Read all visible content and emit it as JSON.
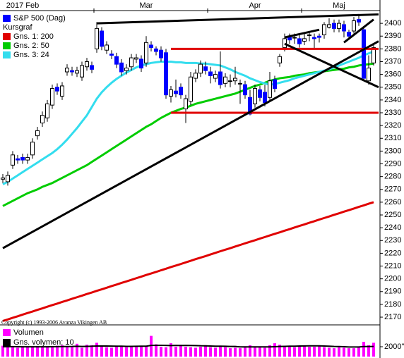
{
  "chart_data": [
    {
      "type": "candlestick",
      "name": "S&P 500 (Dag)",
      "label": "Kursgraf",
      "color": "#0000ff",
      "up_color": "#ffffff",
      "copyright": "Copyright (c) 1993-2006 Avanza Vikingen AB",
      "categories": [
        null,
        null,
        null,
        null,
        "2017 Feb",
        null,
        null,
        null,
        null,
        null,
        null,
        null,
        null,
        null,
        null,
        null,
        null,
        null,
        null,
        null,
        null,
        null,
        null,
        null,
        null,
        null,
        null,
        null,
        null,
        "Mar",
        null,
        null,
        null,
        null,
        null,
        null,
        null,
        null,
        null,
        null,
        null,
        null,
        null,
        null,
        null,
        null,
        null,
        null,
        null,
        null,
        null,
        "Apr",
        null,
        null,
        null,
        null,
        null,
        null,
        null,
        null,
        null,
        null,
        null,
        null,
        null,
        null,
        null,
        null,
        "Maj",
        null,
        null,
        null,
        null,
        null,
        null,
        null
      ],
      "open": [
        2278,
        2276,
        2289,
        2294,
        2295,
        2293,
        2297,
        2312,
        2322,
        2326,
        2336,
        2350,
        2343,
        2362,
        2363,
        2361,
        2358,
        2366,
        2367,
        2380,
        2394,
        2379,
        2376,
        2374,
        2369,
        2363,
        2366,
        2372,
        2372,
        2369,
        2383,
        2380,
        2379,
        2377,
        2343,
        2347,
        2350,
        2333,
        2339,
        2357,
        2361,
        2366,
        2362,
        2357,
        2362,
        2353,
        2355,
        2355,
        2353,
        2352,
        2342,
        2337,
        2348,
        2346,
        2342,
        2356,
        2369,
        2381,
        2389,
        2389,
        2388,
        2386,
        2391,
        2389,
        2390,
        2391,
        2397,
        2400,
        2396,
        2399,
        2393,
        2394,
        2403,
        2395,
        2355,
        2369
      ],
      "high": [
        2282,
        2284,
        2300,
        2297,
        2298,
        2298,
        2310,
        2319,
        2331,
        2340,
        2352,
        2353,
        2354,
        2368,
        2366,
        2366,
        2370,
        2373,
        2370,
        2401,
        2397,
        2386,
        2379,
        2377,
        2372,
        2368,
        2376,
        2376,
        2375,
        2390,
        2386,
        2382,
        2382,
        2380,
        2351,
        2356,
        2353,
        2344,
        2362,
        2364,
        2371,
        2370,
        2366,
        2363,
        2378,
        2361,
        2360,
        2366,
        2356,
        2355,
        2348,
        2352,
        2351,
        2352,
        2362,
        2359,
        2376,
        2392,
        2392,
        2392,
        2392,
        2392,
        2394,
        2392,
        2392,
        2401,
        2404,
        2403,
        2403,
        2402,
        2395,
        2405,
        2406,
        2396,
        2375,
        2384
      ],
      "low": [
        2275,
        2273,
        2286,
        2290,
        2290,
        2290,
        2294,
        2309,
        2319,
        2323,
        2333,
        2344,
        2340,
        2359,
        2359,
        2358,
        2355,
        2363,
        2361,
        2377,
        2379,
        2376,
        2372,
        2365,
        2359,
        2360,
        2363,
        2369,
        2362,
        2366,
        2378,
        2375,
        2370,
        2341,
        2338,
        2342,
        2341,
        2322,
        2336,
        2354,
        2358,
        2360,
        2353,
        2354,
        2349,
        2350,
        2350,
        2352,
        2337,
        2341,
        2328,
        2334,
        2339,
        2335,
        2340,
        2346,
        2366,
        2378,
        2384,
        2384,
        2381,
        2383,
        2386,
        2380,
        2385,
        2388,
        2396,
        2393,
        2393,
        2389,
        2387,
        2392,
        2398,
        2356,
        2352,
        2367
      ],
      "close": [
        2279,
        2281,
        2297,
        2293,
        2293,
        2295,
        2307,
        2316,
        2328,
        2337,
        2349,
        2347,
        2351,
        2365,
        2362,
        2363,
        2367,
        2370,
        2364,
        2396,
        2382,
        2383,
        2375,
        2368,
        2362,
        2365,
        2373,
        2373,
        2365,
        2385,
        2381,
        2378,
        2373,
        2344,
        2348,
        2345,
        2344,
        2341,
        2358,
        2361,
        2368,
        2363,
        2359,
        2360,
        2352,
        2358,
        2355,
        2357,
        2353,
        2344,
        2329,
        2349,
        2342,
        2338,
        2355,
        2349,
        2374,
        2388,
        2387,
        2389,
        2384,
        2388,
        2391,
        2388,
        2389,
        2399,
        2399,
        2396,
        2400,
        2394,
        2390,
        2402,
        2401,
        2357,
        2365,
        2381
      ],
      "series": [
        {
          "name": "Gns. 1: 200",
          "color": "#e00000",
          "values": [
            2167,
            2168.2,
            2169.5,
            2170.7,
            2172.0,
            2173.2,
            2174.4,
            2175.7,
            2176.9,
            2178.2,
            2179.4,
            2180.6,
            2181.9,
            2183.1,
            2184.4,
            2185.6,
            2186.8,
            2188.1,
            2189.3,
            2190.6,
            2191.8,
            2193.0,
            2194.3,
            2195.5,
            2196.8,
            2198.0,
            2199.2,
            2200.5,
            2201.7,
            2203.0,
            2204.2,
            2205.4,
            2206.7,
            2207.9,
            2209.2,
            2210.4,
            2211.6,
            2212.9,
            2214.1,
            2215.4,
            2216.6,
            2217.8,
            2219.1,
            2220.3,
            2221.6,
            2222.8,
            2224.0,
            2225.3,
            2226.5,
            2227.8,
            2229.0,
            2230.2,
            2231.5,
            2232.7,
            2234.0,
            2235.2,
            2236.4,
            2237.7,
            2238.9,
            2240.2,
            2241.4,
            2242.6,
            2243.9,
            2245.1,
            2246.4,
            2247.6,
            2248.8,
            2250.1,
            2251.3,
            2252.6,
            2253.8,
            2255.0,
            2256.3,
            2257.5,
            2258.8,
            2260.0
          ]
        },
        {
          "name": "Gns. 2: 50",
          "color": "#00cc00",
          "values": [
            2257,
            2259,
            2261,
            2263,
            2265,
            2267,
            2268.5,
            2270,
            2272,
            2273.5,
            2275,
            2277,
            2279,
            2281,
            2283,
            2285,
            2287,
            2289,
            2291.5,
            2294,
            2296.5,
            2299,
            2301.5,
            2304,
            2306.5,
            2309,
            2311.5,
            2314,
            2316.5,
            2319,
            2321,
            2323.5,
            2326,
            2328,
            2330,
            2331.5,
            2333,
            2334,
            2335.5,
            2337,
            2338,
            2339,
            2340,
            2341,
            2342,
            2343,
            2344,
            2345,
            2346.5,
            2348,
            2349.5,
            2351,
            2352,
            2353.5,
            2355,
            2356,
            2357,
            2357.5,
            2358,
            2359,
            2359.5,
            2360,
            2361,
            2361.5,
            2362,
            2362.5,
            2363,
            2363.5,
            2364,
            2364.5,
            2365.5,
            2366,
            2367,
            2367.5,
            2368,
            2368.5
          ]
        },
        {
          "name": "Gns. 3: 24",
          "color": "#33ddee",
          "values": [
            2274,
            2276,
            2278.5,
            2281,
            2283.5,
            2286,
            2288.5,
            2291,
            2293.5,
            2296,
            2298.5,
            2301.5,
            2305,
            2309,
            2313.5,
            2318,
            2323,
            2328,
            2334.5,
            2341,
            2346,
            2350,
            2353.5,
            2356.5,
            2359,
            2361.5,
            2363.5,
            2365.5,
            2367,
            2368,
            2369,
            2369.5,
            2370,
            2370,
            2370,
            2369.5,
            2369.5,
            2369,
            2369,
            2369,
            2368.5,
            2368.5,
            2368,
            2367.5,
            2367,
            2365.5,
            2364,
            2362,
            2360.5,
            2359,
            2357,
            2355.5,
            2354,
            2353,
            2352,
            2352.5,
            2353.5,
            2354.5,
            2355.5,
            2357,
            2358,
            2359,
            2360,
            2361,
            2362,
            2363,
            2364,
            2365.5,
            2367,
            2368.5,
            2370,
            2371.5,
            2373,
            2375,
            2376.5,
            2378
          ]
        }
      ],
      "lines": [
        {
          "color": "#000000",
          "points": [
            [
              19,
              2400
            ],
            [
              76,
              2407
            ]
          ]
        },
        {
          "color": "#e00000",
          "points": [
            [
              34,
              2380
            ],
            [
              76,
              2380
            ]
          ]
        },
        {
          "color": "#e00000",
          "points": [
            [
              34,
              2330
            ],
            [
              76,
              2330
            ]
          ]
        },
        {
          "color": "#000000",
          "points": [
            [
              0,
              2224
            ],
            [
              76,
              2386
            ]
          ]
        },
        {
          "color": "#000000",
          "points": [
            [
              57,
              2384
            ],
            [
              76,
              2350
            ]
          ]
        },
        {
          "color": "#000000",
          "points": [
            [
              57,
              2389
            ],
            [
              64,
              2395
            ]
          ]
        },
        {
          "color": "#000000",
          "points": [
            [
              69,
              2385
            ],
            [
              75,
              2403
            ]
          ]
        }
      ],
      "ylim": [
        2164.5,
        2410
      ],
      "yticks": [
        2170,
        2180,
        2190,
        2200,
        2210,
        2220,
        2230,
        2240,
        2250,
        2260,
        2270,
        2280,
        2290,
        2300,
        2310,
        2320,
        2330,
        2340,
        2350,
        2360,
        2370,
        2380,
        2390,
        2400
      ]
    },
    {
      "type": "bar",
      "series": [
        {
          "name": "Volumen",
          "color": "#ff00ff",
          "values": [
            2200,
            2100,
            1900,
            1800,
            1900,
            1900,
            2000,
            2100,
            1900,
            2000,
            2100,
            2200,
            2300,
            2000,
            2000,
            2600,
            1800,
            2400,
            2300,
            2800,
            2100,
            1900,
            1800,
            2000,
            2100,
            1900,
            2000,
            2200,
            2100,
            2200,
            4200,
            2500,
            2000,
            1900,
            2700,
            2000,
            2400,
            2000,
            1900,
            1800,
            2000,
            2300,
            1900,
            1800,
            2100,
            1900,
            1700,
            1800,
            1700,
            2000,
            2300,
            1900,
            2000,
            1800,
            2300,
            2700,
            2400,
            2200,
            2100,
            1900,
            2200,
            2100,
            2000,
            2000,
            2200,
            1900,
            1800,
            1700,
            1900,
            1800,
            1700,
            1700,
            2000,
            3000,
            2300,
            2800
          ]
        },
        {
          "name": "Gns. volymen: 10",
          "color": "#000000",
          "type": "line",
          "values": [
            2000,
            2000,
            2010,
            2000,
            1990,
            1980,
            1980,
            1990,
            1990,
            1990,
            2000,
            2010,
            2030,
            2040,
            2050,
            2090,
            2060,
            2080,
            2100,
            2150,
            2150,
            2140,
            2120,
            2110,
            2100,
            2080,
            2070,
            2090,
            2100,
            2110,
            2260,
            2290,
            2280,
            2260,
            2240,
            2270,
            2250,
            2270,
            2250,
            2230,
            2190,
            2180,
            2150,
            2100,
            2110,
            2090,
            2060,
            2050,
            1960,
            1960,
            1960,
            1960,
            1960,
            1960,
            1960,
            2000,
            2060,
            2080,
            2110,
            2110,
            2150,
            2160,
            2170,
            2180,
            2170,
            2150,
            2100,
            2050,
            2030,
            2000,
            1950,
            1950,
            1950,
            2030,
            2030,
            2060
          ]
        }
      ],
      "ylim": [
        0,
        6000
      ],
      "yticks": [
        {
          "value": 2000,
          "label": "2000''"
        }
      ]
    }
  ]
}
